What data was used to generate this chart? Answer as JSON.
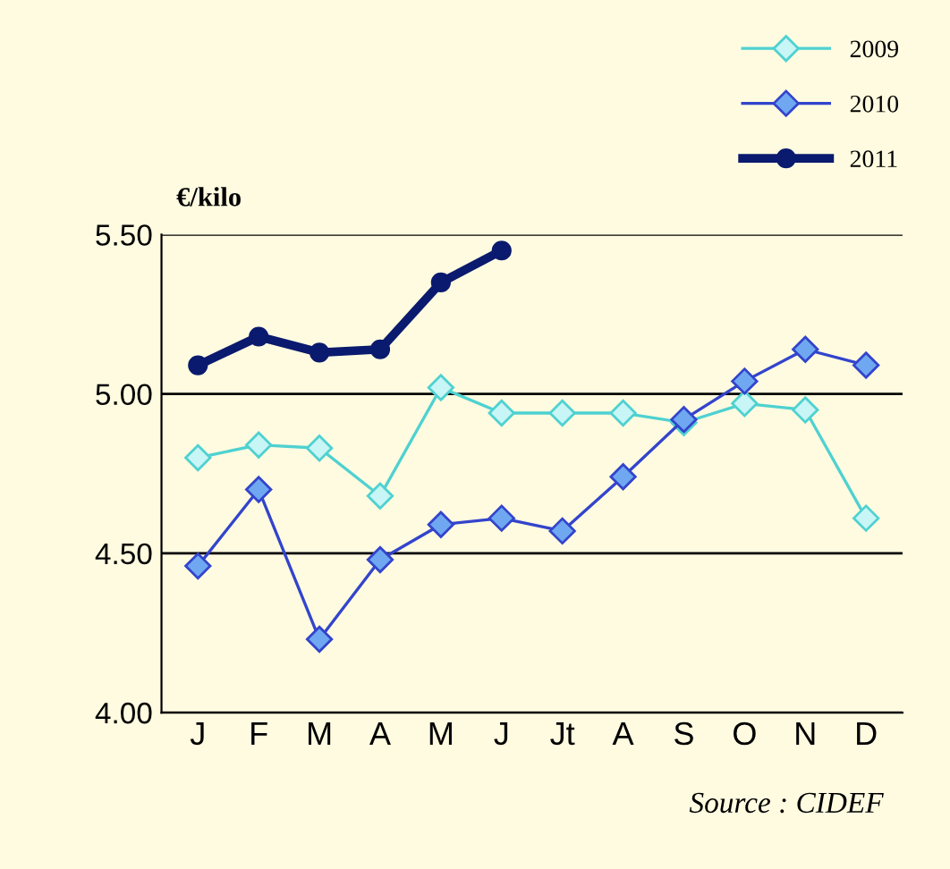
{
  "chart_data": {
    "type": "line",
    "ylabel": "€/kilo",
    "categories": [
      "J",
      "F",
      "M",
      "A",
      "M",
      "J",
      "Jt",
      "A",
      "S",
      "O",
      "N",
      "D"
    ],
    "series": [
      {
        "name": "2009",
        "color": "#4fd1d1",
        "marker": "diamond",
        "values": [
          4.8,
          4.84,
          4.83,
          4.68,
          5.02,
          4.94,
          4.94,
          4.94,
          4.91,
          4.97,
          4.95,
          4.61
        ]
      },
      {
        "name": "2010",
        "color": "#3344cc",
        "marker": "diamond",
        "values": [
          4.46,
          4.7,
          4.23,
          4.48,
          4.59,
          4.61,
          4.57,
          4.74,
          4.92,
          5.04,
          5.14,
          5.09
        ]
      },
      {
        "name": "2011",
        "color": "#0a1a6e",
        "marker": "circle",
        "values": [
          5.09,
          5.18,
          5.13,
          5.14,
          5.35,
          5.45,
          null,
          null,
          null,
          null,
          null,
          null
        ]
      }
    ],
    "ylim": [
      4.0,
      5.5
    ],
    "yticks": [
      {
        "value": 4.0,
        "label": "4.00"
      },
      {
        "value": 4.5,
        "label": "4.50"
      },
      {
        "value": 5.0,
        "label": "5.00"
      },
      {
        "value": 5.5,
        "label": "5.50"
      }
    ],
    "grid": "y",
    "legend": "top right",
    "annotations": [
      "Source : CIDEF"
    ]
  }
}
